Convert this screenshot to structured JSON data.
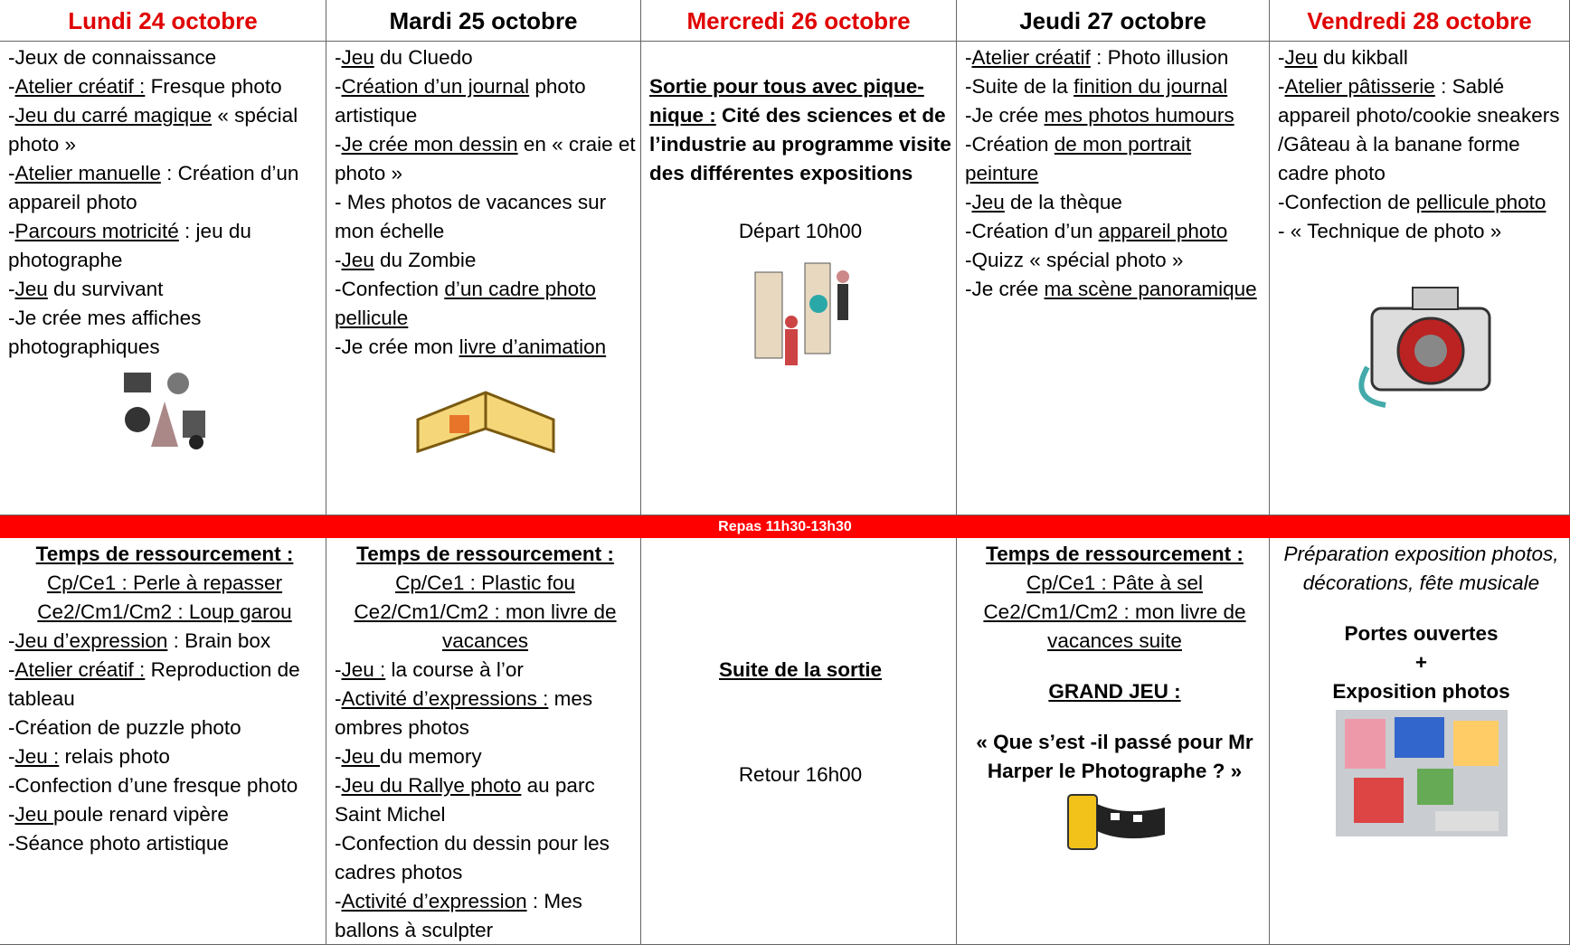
{
  "days": [
    "Lundi 24 octobre",
    "Mardi 25 octobre",
    "Mercredi 26 octobre",
    "Jeudi 27 octobre",
    "Vendredi 28 octobre"
  ],
  "activities": [
    [
      [
        "-Jeux de connaissance"
      ],
      [
        "-",
        {
          "u": "Atelier créatif :"
        },
        " Fresque photo"
      ],
      [
        "-",
        {
          "u": "Jeu du carré magique"
        },
        " « spécial photo »"
      ],
      [
        "-",
        {
          "u": "Atelier manuelle"
        },
        " : Création d’un appareil photo"
      ],
      [
        "-",
        {
          "u": "Parcours motricité"
        },
        " : jeu du photographe"
      ],
      [
        "-",
        {
          "u": "Jeu"
        },
        " du survivant"
      ],
      [
        "-Je crée mes affiches photographiques"
      ]
    ],
    [
      [
        "-",
        {
          "u": "Jeu"
        },
        " du Cluedo"
      ],
      [
        "-",
        {
          "u": "Création d’un journal"
        },
        " photo artistique"
      ],
      [
        "-",
        {
          "u": "Je crée mon dessin"
        },
        " en « craie et photo »"
      ],
      [
        "- Mes photos de vacances sur mon échelle"
      ],
      [
        "-",
        {
          "u": "Jeu"
        },
        " du Zombie"
      ],
      [
        "-Confection ",
        {
          "u": "d’un cadre photo pellicule"
        }
      ],
      [
        "-Je crée mon ",
        {
          "u": "livre d’animation"
        }
      ]
    ],
    [
      [
        {
          "u": "Sortie pour tous avec pique-nique :"
        },
        " Cité des sciences et de l’industrie au programme visite des différentes expositions"
      ],
      [
        "Départ 10h00"
      ]
    ],
    [
      [
        "-",
        {
          "u": "Atelier créatif"
        },
        " : Photo illusion"
      ],
      [
        "-Suite de la ",
        {
          "u": "finition du journal"
        }
      ],
      [
        "-Je crée ",
        {
          "u": "mes photos humours"
        }
      ],
      [
        "-Création ",
        {
          "u": "de mon portrait peinture"
        }
      ],
      [
        "-",
        {
          "u": "Jeu"
        },
        " de la thèque"
      ],
      [
        "-Création d’un ",
        {
          "u": "appareil photo"
        }
      ],
      [
        "-Quizz « spécial photo »"
      ],
      [
        "-Je crée ",
        {
          "u": "ma scène panoramique"
        }
      ]
    ],
    [
      [
        "-",
        {
          "u": "Jeu"
        },
        " du kikball"
      ],
      [
        "-",
        {
          "u": "Atelier pâtisserie"
        },
        " : Sablé appareil photo/cookie sneakers /Gâteau à la banane forme cadre photo"
      ],
      [
        "-Confection de ",
        {
          "u": "pellicule photo"
        }
      ],
      [
        "- « Technique de photo »"
      ]
    ]
  ],
  "lunch": "Repas 11h30-13h30",
  "afternoon": [
    [
      [
        {
          "u": "Temps de ressourcement :"
        }
      ],
      [
        {
          "u": "Cp/Ce1 : Perle à repasser"
        }
      ],
      [
        {
          "u": "Ce2/Cm1/Cm2 : Loup garou"
        }
      ],
      [
        "-",
        {
          "u": "Jeu d’expression"
        },
        " : Brain box"
      ],
      [
        "-",
        {
          "u": "Atelier créatif :"
        },
        " Reproduction de tableau"
      ],
      [
        "-Création de puzzle photo"
      ],
      [
        "-",
        {
          "u": "Jeu :"
        },
        " relais photo"
      ],
      [
        "-Confection d’une fresque photo"
      ],
      [
        "-",
        {
          "u": "Jeu "
        },
        "poule renard vipère"
      ],
      [
        "-Séance photo artistique"
      ]
    ],
    [
      [
        {
          "u": "Temps de ressourcement :"
        }
      ],
      [
        {
          "u": "Cp/Ce1 : Plastic fou"
        }
      ],
      [
        {
          "u": "Ce2/Cm1/Cm2 : mon livre de vacances"
        }
      ],
      [
        "-",
        {
          "u": "Jeu :"
        },
        " la course à l’or"
      ],
      [
        "-",
        {
          "u": "Activité d’expressions :"
        },
        " mes ombres photos"
      ],
      [
        "-",
        {
          "u": "Jeu "
        },
        "du memory"
      ],
      [
        "-",
        {
          "u": "Jeu du Rallye photo"
        },
        " au parc Saint Michel"
      ],
      [
        "-Confection du dessin pour les cadres photos"
      ],
      [
        "-",
        {
          "u": "Activité d’expression"
        },
        " : Mes ballons à sculpter"
      ]
    ],
    [
      [
        {
          "u": "Suite de la sortie"
        }
      ],
      [
        "Retour 16h00"
      ]
    ],
    [
      [
        {
          "u": "Temps de ressourcement :"
        }
      ],
      [
        {
          "u": "Cp/Ce1 : Pâte à sel"
        }
      ],
      [
        {
          "u": "Ce2/Cm1/Cm2 : mon livre de vacances suite"
        }
      ],
      [
        {
          "u": "GRAND JEU :"
        }
      ],
      [
        "« Que s’est -il passé pour Mr Harper le Photographe ? »"
      ]
    ],
    [
      [
        "Préparation exposition photos, décorations, fête musicale"
      ],
      [
        "Portes ouvertes"
      ],
      [
        "+"
      ],
      [
        "Exposition photos"
      ]
    ]
  ]
}
